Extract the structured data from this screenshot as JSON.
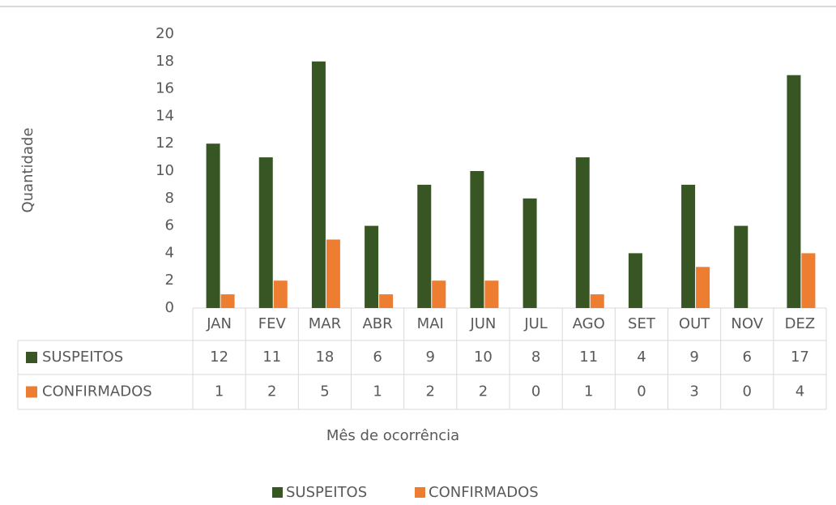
{
  "chart_data": {
    "type": "bar",
    "x_label": "Mês de ocorrência",
    "y_label": "Quantidade",
    "categories": [
      "JAN",
      "FEV",
      "MAR",
      "ABR",
      "MAI",
      "JUN",
      "JUL",
      "AGO",
      "SET",
      "OUT",
      "NOV",
      "DEZ"
    ],
    "series": [
      {
        "name": "SUSPEITOS",
        "color": "#375623",
        "values": [
          12,
          11,
          18,
          6,
          9,
          10,
          8,
          11,
          4,
          9,
          6,
          17
        ]
      },
      {
        "name": "CONFIRMADOS",
        "color": "#ed7d31",
        "values": [
          1,
          2,
          5,
          1,
          2,
          2,
          0,
          1,
          0,
          3,
          0,
          4
        ]
      }
    ],
    "ylim": [
      0,
      20
    ],
    "yticks": [
      0,
      2,
      4,
      6,
      8,
      10,
      12,
      14,
      16,
      18,
      20
    ],
    "grid": false,
    "data_table": true,
    "legend": "bottom"
  }
}
